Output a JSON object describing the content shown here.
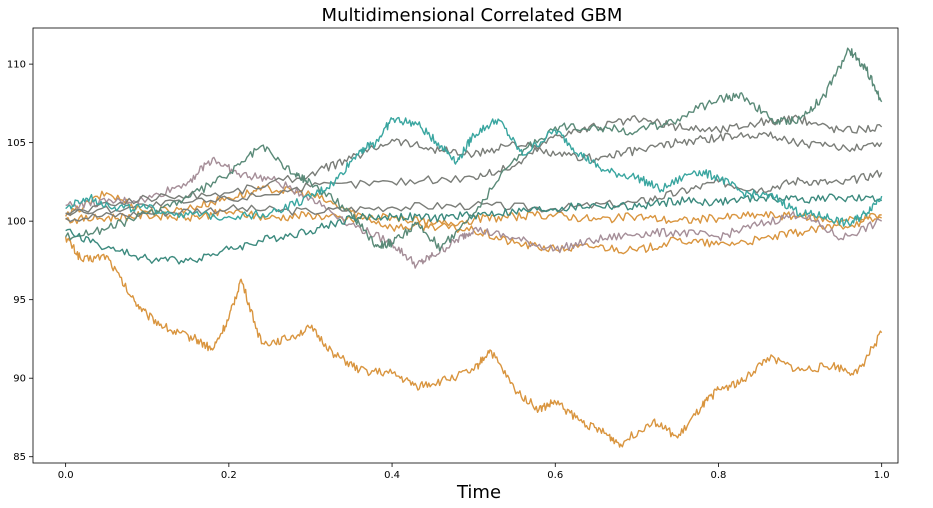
{
  "chart_data": {
    "type": "line",
    "title": "Multidimensional Correlated GBM",
    "xlabel": "Time",
    "ylabel": "",
    "xlim": [
      -0.04,
      1.02
    ],
    "ylim": [
      84.6,
      112.3
    ],
    "grid": false,
    "legend": "none",
    "x_ticks": [
      0.0,
      0.2,
      0.4,
      0.6,
      0.8,
      1.0
    ],
    "x_tick_labels": [
      "0.0",
      "0.2",
      "0.4",
      "0.6",
      "0.8",
      "1.0"
    ],
    "y_ticks": [
      85,
      90,
      95,
      100,
      105,
      110
    ],
    "y_tick_labels": [
      "85",
      "90",
      "95",
      "100",
      "105",
      "110"
    ],
    "series": [
      {
        "color": "#d9953f",
        "x": [
          0.0,
          0.02,
          0.05,
          0.08,
          0.1,
          0.13,
          0.16,
          0.18,
          0.2,
          0.215,
          0.24,
          0.27,
          0.3,
          0.33,
          0.36,
          0.4,
          0.43,
          0.46,
          0.5,
          0.52,
          0.55,
          0.58,
          0.6,
          0.63,
          0.66,
          0.68,
          0.72,
          0.75,
          0.78,
          0.8,
          0.83,
          0.86,
          0.9,
          0.94,
          0.97,
          1.0
        ],
        "y": [
          99.0,
          97.5,
          97.8,
          95.2,
          94.0,
          93.0,
          92.5,
          91.8,
          93.8,
          96.3,
          92.2,
          92.5,
          93.2,
          91.5,
          90.5,
          90.3,
          89.5,
          89.8,
          90.5,
          91.8,
          89.3,
          88.0,
          88.5,
          87.3,
          86.5,
          85.8,
          87.3,
          86.2,
          88.2,
          89.3,
          89.8,
          91.3,
          90.5,
          90.8,
          90.3,
          92.9
        ]
      },
      {
        "color": "#d9953f",
        "x": [
          0.0,
          0.05,
          0.1,
          0.15,
          0.2,
          0.25,
          0.3,
          0.35,
          0.4,
          0.45,
          0.5,
          0.55,
          0.6,
          0.65,
          0.7,
          0.75,
          0.8,
          0.85,
          0.9,
          0.95,
          1.0
        ],
        "y": [
          100.3,
          101.8,
          100.6,
          100.8,
          101.5,
          102.1,
          101.7,
          100.6,
          99.6,
          99.7,
          99.4,
          98.6,
          98.2,
          98.4,
          98.1,
          98.8,
          98.5,
          98.8,
          99.3,
          99.7,
          100.2
        ]
      },
      {
        "color": "#d9953f",
        "x": [
          0.0,
          0.05,
          0.1,
          0.15,
          0.2,
          0.25,
          0.3,
          0.35,
          0.4,
          0.45,
          0.5,
          0.55,
          0.6,
          0.65,
          0.7,
          0.75,
          0.8,
          0.85,
          0.9,
          0.95,
          1.0
        ],
        "y": [
          100.1,
          100.2,
          100.4,
          100.2,
          100.6,
          100.2,
          100.4,
          100.1,
          100.3,
          99.8,
          100.1,
          100.3,
          100.4,
          100.1,
          100.3,
          100.0,
          100.2,
          100.4,
          100.3,
          100.0,
          100.4
        ]
      },
      {
        "color": "#a58e98",
        "x": [
          0.0,
          0.05,
          0.1,
          0.15,
          0.18,
          0.21,
          0.25,
          0.3,
          0.35,
          0.4,
          0.43,
          0.45,
          0.48,
          0.5,
          0.55,
          0.6,
          0.65,
          0.7,
          0.75,
          0.8,
          0.85,
          0.9,
          0.95,
          1.0
        ],
        "y": [
          101.0,
          101.2,
          101.4,
          102.5,
          104.0,
          103.0,
          102.7,
          101.5,
          99.8,
          98.6,
          97.2,
          97.8,
          98.8,
          99.5,
          98.9,
          98.2,
          98.8,
          99.2,
          99.3,
          99.0,
          99.8,
          100.5,
          98.9,
          100.0
        ]
      },
      {
        "color": "#7a7d78",
        "x": [
          0.0,
          0.1,
          0.2,
          0.3,
          0.35,
          0.4,
          0.45,
          0.5,
          0.55,
          0.6,
          0.65,
          0.7,
          0.75,
          0.8,
          0.85,
          0.9,
          0.95,
          1.0
        ],
        "y": [
          100.5,
          101.5,
          101.8,
          103.0,
          104.0,
          105.2,
          104.6,
          104.2,
          105.0,
          104.2,
          104.0,
          104.5,
          105.0,
          105.3,
          105.6,
          105.0,
          104.6,
          105.0
        ]
      },
      {
        "color": "#7a7d78",
        "x": [
          0.0,
          0.1,
          0.2,
          0.3,
          0.4,
          0.5,
          0.55,
          0.6,
          0.65,
          0.7,
          0.75,
          0.8,
          0.85,
          0.9,
          0.95,
          1.0
        ],
        "y": [
          100.5,
          101.0,
          101.4,
          102.2,
          102.5,
          102.8,
          103.5,
          105.5,
          106.0,
          106.5,
          106.0,
          105.8,
          106.3,
          106.5,
          105.8,
          106.0
        ]
      },
      {
        "color": "#7a7d78",
        "x": [
          0.0,
          0.1,
          0.2,
          0.3,
          0.4,
          0.5,
          0.6,
          0.7,
          0.75,
          0.8,
          0.85,
          0.9,
          0.95,
          1.0
        ],
        "y": [
          100.2,
          100.5,
          100.8,
          100.6,
          100.9,
          101.0,
          100.8,
          101.2,
          101.8,
          102.5,
          102.0,
          102.6,
          102.4,
          103.1
        ]
      },
      {
        "color": "#5a8a78",
        "x": [
          0.0,
          0.05,
          0.1,
          0.15,
          0.2,
          0.24,
          0.28,
          0.3,
          0.35,
          0.38,
          0.4,
          0.43,
          0.46,
          0.5,
          0.55,
          0.6,
          0.65,
          0.7,
          0.75,
          0.8,
          0.83,
          0.87,
          0.9,
          0.93,
          0.96,
          0.98,
          1.0
        ],
        "y": [
          99.0,
          99.5,
          100.5,
          101.5,
          103.0,
          104.8,
          103.0,
          102.5,
          100.5,
          98.5,
          98.6,
          99.8,
          98.3,
          100.5,
          104.0,
          106.0,
          106.0,
          105.7,
          106.5,
          107.8,
          108.0,
          106.3,
          106.5,
          108.0,
          110.9,
          109.8,
          107.6
        ]
      },
      {
        "color": "#3c8a7e",
        "x": [
          0.0,
          0.05,
          0.1,
          0.15,
          0.2,
          0.25,
          0.3,
          0.35,
          0.4,
          0.45,
          0.5,
          0.55,
          0.6,
          0.65,
          0.7,
          0.75,
          0.8,
          0.85,
          0.9,
          0.95,
          1.0
        ],
        "y": [
          99.4,
          98.3,
          97.6,
          97.5,
          98.2,
          98.9,
          99.4,
          100.2,
          100.3,
          100.2,
          100.4,
          100.6,
          100.8,
          101.0,
          100.9,
          101.3,
          101.2,
          101.5,
          101.4,
          101.5,
          101.3
        ]
      },
      {
        "color": "#3aa6a0",
        "x": [
          0.0,
          0.03,
          0.06,
          0.1,
          0.15,
          0.2,
          0.25,
          0.3,
          0.33,
          0.36,
          0.38,
          0.4,
          0.43,
          0.46,
          0.48,
          0.5,
          0.53,
          0.56,
          0.6,
          0.63,
          0.66,
          0.7,
          0.73,
          0.77,
          0.8,
          0.83,
          0.87,
          0.9,
          0.93,
          0.96,
          0.98,
          1.0
        ],
        "y": [
          100.8,
          101.5,
          100.9,
          100.8,
          100.4,
          100.3,
          100.5,
          101.5,
          102.5,
          104.5,
          105.0,
          106.5,
          106.2,
          104.8,
          103.8,
          105.5,
          106.5,
          104.2,
          105.8,
          104.3,
          103.2,
          102.8,
          102.0,
          103.2,
          102.8,
          101.8,
          101.5,
          100.5,
          100.3,
          99.8,
          100.5,
          101.6
        ]
      }
    ]
  }
}
